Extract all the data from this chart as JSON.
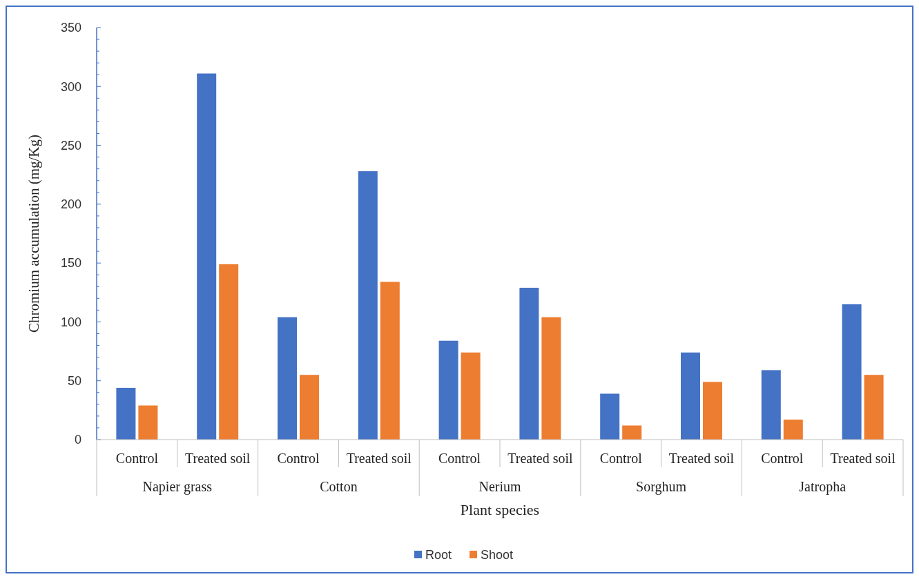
{
  "chart_data": {
    "type": "bar",
    "xlabel": "Plant species",
    "ylabel": "Chromium accumulation (mg/Kg)",
    "categories": [
      "Control",
      "Treated soil",
      "Control",
      "Treated soil",
      "Control",
      "Treated soil",
      "Control",
      "Treated soil",
      "Control",
      "Treated soil"
    ],
    "annotations": [
      "Napier grass",
      "Cotton",
      "Nerium",
      "Sorghum",
      "Jatropha"
    ],
    "series": [
      {
        "name": "Root",
        "color": "#4472c4",
        "values": [
          44,
          311,
          104,
          228,
          84,
          129,
          39,
          74,
          59,
          115
        ]
      },
      {
        "name": "Shoot",
        "color": "#ed7d31",
        "values": [
          29,
          149,
          55,
          134,
          74,
          104,
          12,
          49,
          17,
          55
        ]
      }
    ],
    "ylim": [
      0,
      350
    ],
    "yticks": [
      0,
      {
        "value": 10,
        "label": null
      },
      {
        "value": 20,
        "label": null
      },
      {
        "value": 30,
        "label": null
      },
      {
        "value": 40,
        "label": null
      },
      50,
      {
        "value": 60,
        "label": null
      },
      {
        "value": 70,
        "label": null
      },
      {
        "value": 80,
        "label": null
      },
      {
        "value": 90,
        "label": null
      },
      100,
      {
        "value": 110,
        "label": null
      },
      {
        "value": 120,
        "label": null
      },
      {
        "value": 130,
        "label": null
      },
      {
        "value": 140,
        "label": null
      },
      150,
      {
        "value": 160,
        "label": null
      },
      {
        "value": 170,
        "label": null
      },
      {
        "value": 180,
        "label": null
      },
      {
        "value": 190,
        "label": null
      },
      200,
      {
        "value": 210,
        "label": null
      },
      {
        "value": 220,
        "label": null
      },
      {
        "value": 230,
        "label": null
      },
      {
        "value": 240,
        "label": null
      },
      250,
      {
        "value": 260,
        "label": null
      },
      {
        "value": 270,
        "label": null
      },
      {
        "value": 280,
        "label": null
      },
      {
        "value": 290,
        "label": null
      },
      300,
      {
        "value": 310,
        "label": null
      },
      {
        "value": 320,
        "label": null
      },
      {
        "value": 330,
        "label": null
      },
      {
        "value": 340,
        "label": null
      },
      350
    ],
    "grid": false,
    "legend": "bottom"
  }
}
